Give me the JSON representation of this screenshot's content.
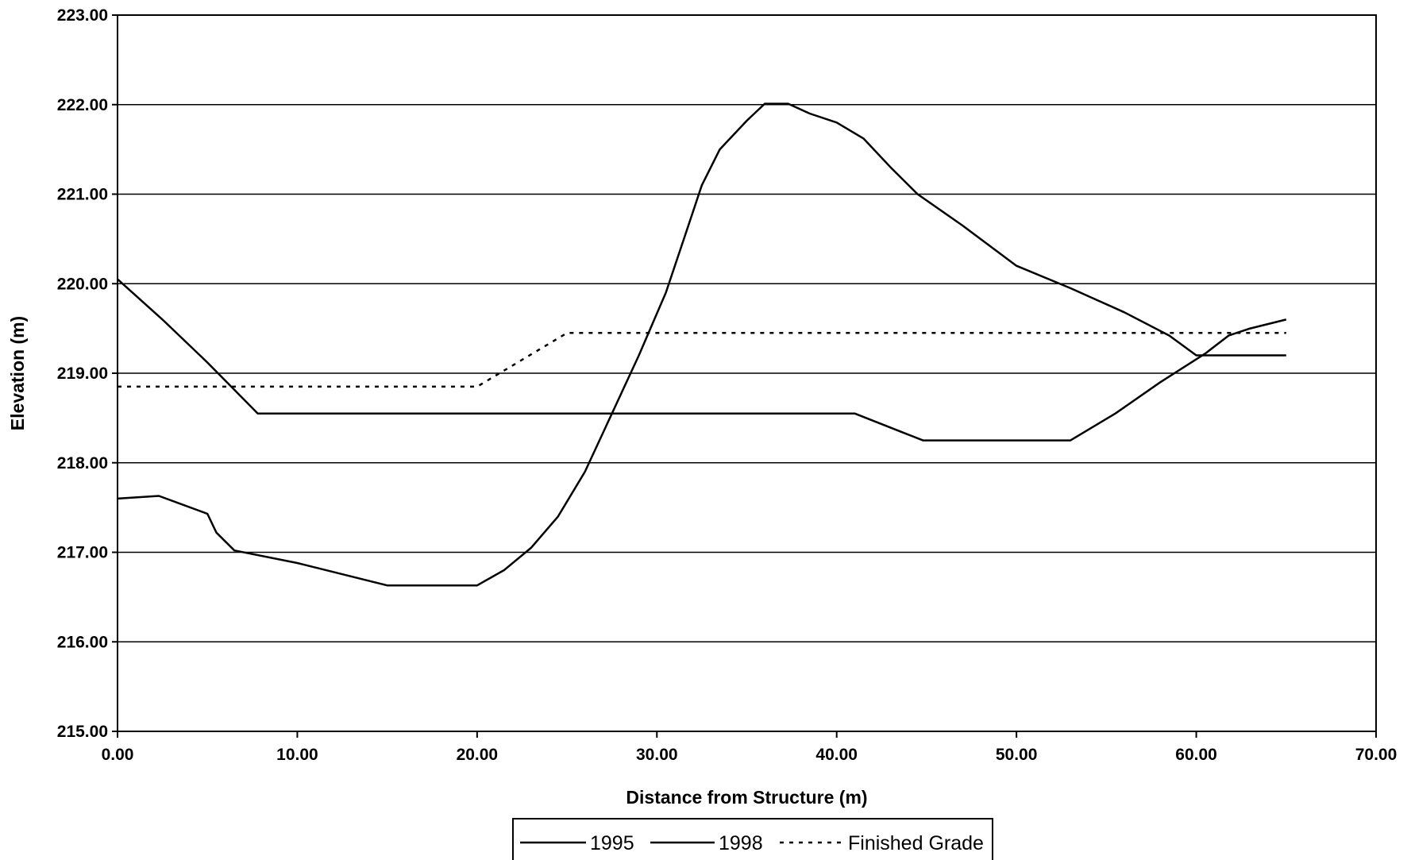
{
  "chart_data": {
    "type": "line",
    "title": "",
    "xlabel": "Distance from Structure (m)",
    "ylabel": "Elevation (m)",
    "xlim": [
      0,
      70
    ],
    "ylim": [
      215,
      223
    ],
    "x_ticks": [
      "0.00",
      "10.00",
      "20.00",
      "30.00",
      "40.00",
      "50.00",
      "60.00",
      "70.00"
    ],
    "y_ticks": [
      "215.00",
      "216.00",
      "217.00",
      "218.00",
      "219.00",
      "220.00",
      "221.00",
      "222.00",
      "223.00"
    ],
    "grid": "horizontal",
    "legend_position": "bottom",
    "series": [
      {
        "name": "1995",
        "style": "solid",
        "color": "#000000",
        "points": [
          [
            0,
            217.6
          ],
          [
            2.3,
            217.63
          ],
          [
            5.0,
            217.43
          ],
          [
            5.5,
            217.22
          ],
          [
            6.5,
            217.02
          ],
          [
            10,
            216.88
          ],
          [
            15,
            216.63
          ],
          [
            20,
            216.63
          ],
          [
            21.5,
            216.8
          ],
          [
            23,
            217.05
          ],
          [
            24.5,
            217.4
          ],
          [
            26,
            217.9
          ],
          [
            27.5,
            218.55
          ],
          [
            29,
            219.2
          ],
          [
            30.5,
            219.9
          ],
          [
            31.5,
            220.5
          ],
          [
            32.5,
            221.1
          ],
          [
            33.5,
            221.5
          ],
          [
            35,
            221.82
          ],
          [
            36,
            222.01
          ],
          [
            37.3,
            222.01
          ],
          [
            38.5,
            221.9
          ],
          [
            40,
            221.8
          ],
          [
            41.5,
            221.62
          ],
          [
            43,
            221.3
          ],
          [
            44.5,
            221.0
          ],
          [
            47,
            220.65
          ],
          [
            50,
            220.2
          ],
          [
            53,
            219.95
          ],
          [
            56,
            219.68
          ],
          [
            58.5,
            219.42
          ],
          [
            60,
            219.2
          ],
          [
            65,
            219.2
          ]
        ]
      },
      {
        "name": "1998",
        "style": "solid",
        "color": "#000000",
        "points": [
          [
            0,
            220.05
          ],
          [
            2.5,
            219.6
          ],
          [
            5,
            219.12
          ],
          [
            7.8,
            218.55
          ],
          [
            41,
            218.55
          ],
          [
            44.8,
            218.25
          ],
          [
            53,
            218.25
          ],
          [
            55.5,
            218.55
          ],
          [
            58,
            218.9
          ],
          [
            60.5,
            219.22
          ],
          [
            61.8,
            219.42
          ],
          [
            63,
            219.5
          ],
          [
            65,
            219.6
          ]
        ]
      },
      {
        "name": "Finished Grade",
        "style": "dotted",
        "color": "#000000",
        "points": [
          [
            0,
            218.85
          ],
          [
            20,
            218.85
          ],
          [
            25,
            219.45
          ],
          [
            65,
            219.45
          ]
        ]
      }
    ]
  }
}
